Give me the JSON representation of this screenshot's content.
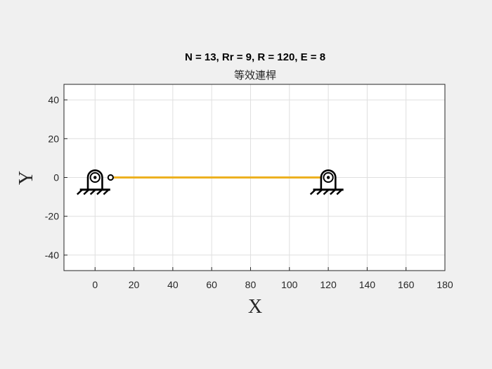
{
  "chart_data": {
    "type": "line",
    "title": "N = 13, Rr = 9, R = 120, E = 8",
    "subtitle": "等效連桿",
    "xlabel": "X",
    "ylabel": "Y",
    "xlim": [
      -16,
      180
    ],
    "ylim": [
      -48,
      48
    ],
    "xticks": [
      0,
      20,
      40,
      60,
      80,
      100,
      120,
      140,
      160,
      180
    ],
    "yticks": [
      -40,
      -20,
      0,
      20,
      40
    ],
    "grid": true,
    "legend": "none",
    "series": [
      {
        "x": [
          8,
          120
        ],
        "y": [
          0,
          0
        ],
        "color": "#EDB120"
      }
    ],
    "supports": [
      {
        "x": 0,
        "y": 0
      },
      {
        "x": 120,
        "y": 0
      }
    ],
    "joint": {
      "x": 8,
      "y": 0
    },
    "colors": {
      "link": "#EDB120",
      "symbol": "#000000",
      "background": "#f0f0f0",
      "plot_area": "#ffffff",
      "grid": "#dfdfdf"
    }
  }
}
